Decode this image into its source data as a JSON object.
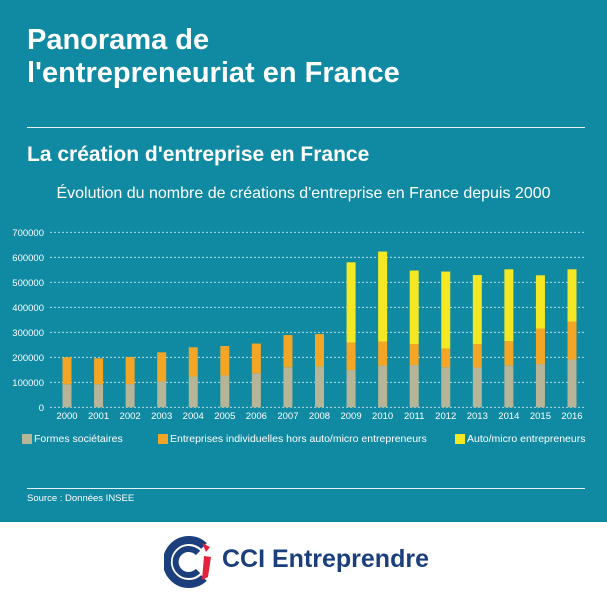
{
  "header": {
    "title_line1": "Panorama de",
    "title_line2": "l'entrepreneuriat en France",
    "subtitle": "La création d'entreprise en France"
  },
  "chart_data": {
    "type": "bar",
    "stacked": true,
    "title": "Évolution du nombre de créations d'entreprise en France depuis 2000",
    "xlabel": "",
    "ylabel": "",
    "ylim": [
      0,
      700000
    ],
    "yticks": [
      0,
      100000,
      200000,
      300000,
      400000,
      500000,
      600000,
      700000
    ],
    "grid": true,
    "legend_position": "bottom",
    "categories": [
      "2000",
      "2001",
      "2002",
      "2003",
      "2004",
      "2005",
      "2006",
      "2007",
      "2008",
      "2009",
      "2010",
      "2011",
      "2012",
      "2013",
      "2014",
      "2015",
      "2016"
    ],
    "series": [
      {
        "name": "Formes sociétaires",
        "color": "#b7b597",
        "values": [
          92000,
          92000,
          93000,
          103000,
          123000,
          127000,
          136000,
          160000,
          163000,
          149000,
          167000,
          169000,
          160000,
          159000,
          168000,
          173000,
          191000
        ]
      },
      {
        "name": "Entreprises individuelles hors auto/micro entrepreneurs",
        "color": "#f3a626",
        "values": [
          108000,
          104000,
          108000,
          117000,
          117000,
          118000,
          119000,
          129000,
          130000,
          110000,
          96000,
          84000,
          75000,
          94000,
          96000,
          142000,
          152000
        ]
      },
      {
        "name": "Auto/micro entrepreneurs",
        "color": "#f4e724",
        "values": [
          0,
          0,
          0,
          0,
          0,
          0,
          0,
          0,
          0,
          321000,
          360000,
          294000,
          308000,
          276000,
          288000,
          213000,
          209000
        ]
      }
    ]
  },
  "source": "Source : Données INSEE",
  "footer": {
    "brand": "CCI Entreprendre"
  },
  "colors": {
    "background": "#0f8aa2",
    "brand": "#1b3f7c",
    "logo_red": "#e3223b"
  }
}
